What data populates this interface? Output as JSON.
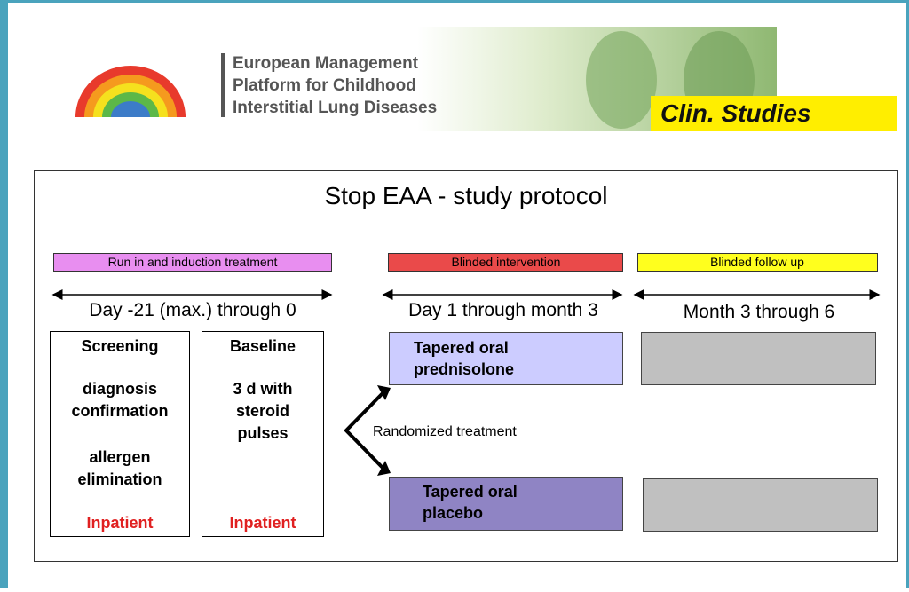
{
  "header": {
    "platform_lines": [
      "European Management",
      "Platform for Childhood",
      "Interstitial Lung Diseases"
    ],
    "badge": "Clin. Studies"
  },
  "protocol": {
    "title": "Stop EAA - study protocol",
    "phases": [
      {
        "label": "Run in and induction treatment",
        "period": "Day -21 (max.) through 0"
      },
      {
        "label": "Blinded intervention",
        "period": "Day 1 through month 3"
      },
      {
        "label": "Blinded follow up",
        "period": "Month 3 through 6"
      }
    ],
    "screening": {
      "heading": "Screening",
      "lines": [
        "diagnosis",
        "confirmation",
        "allergen",
        "elimination"
      ],
      "setting": "Inpatient"
    },
    "baseline": {
      "heading": "Baseline",
      "lines": [
        "3 d with",
        "steroid",
        "pulses"
      ],
      "setting": "Inpatient"
    },
    "randomization": "Randomized  treatment",
    "arms": [
      {
        "lines": [
          "Tapered oral",
          "prednisolone"
        ]
      },
      {
        "lines": [
          "Tapered oral",
          "placebo"
        ]
      }
    ]
  }
}
